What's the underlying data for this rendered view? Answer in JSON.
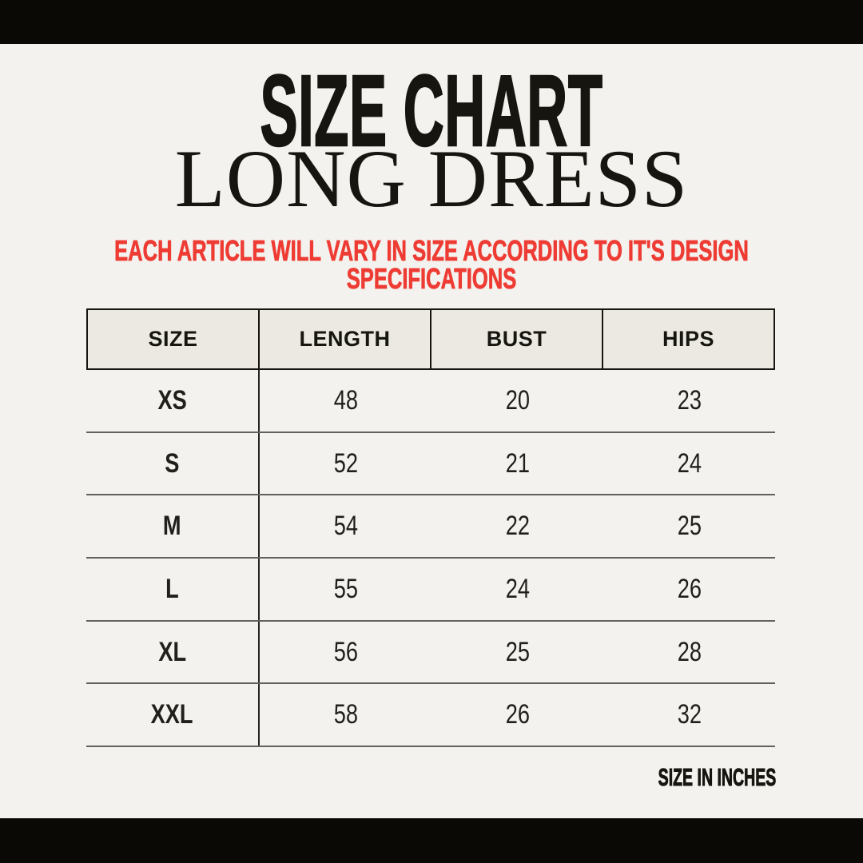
{
  "colors": {
    "page_bg": "#f3f2ee",
    "bar_black": "#0a0906",
    "ink": "#16150f",
    "accent_red": "#ee3b33",
    "header_bg": "#ebe9e2",
    "rule_gray": "#63615b",
    "divider": "#262520"
  },
  "header": {
    "title": "SIZE CHART",
    "subtitle": "LONG DRESS",
    "notice_line1": "EACH ARTICLE WILL VARY IN SIZE ACCORDING TO IT'S DESIGN",
    "notice_line2": "SPECIFICATIONS"
  },
  "size_table": {
    "columns": [
      "SIZE",
      "LENGTH",
      "BUST",
      "HIPS"
    ],
    "rows": [
      [
        "XS",
        "48",
        "20",
        "23"
      ],
      [
        "S",
        "52",
        "21",
        "24"
      ],
      [
        "M",
        "54",
        "22",
        "25"
      ],
      [
        "L",
        "55",
        "24",
        "26"
      ],
      [
        "XL",
        "56",
        "25",
        "28"
      ],
      [
        "XXL",
        "58",
        "26",
        "32"
      ]
    ]
  },
  "footer": {
    "unit_label": "SIZE IN INCHES"
  },
  "chart_data": {
    "type": "table",
    "title": "SIZE CHART",
    "subtitle": "LONG DRESS",
    "note": "EACH ARTICLE WILL VARY IN SIZE ACCORDING TO IT'S DESIGN SPECIFICATIONS",
    "units": "inches",
    "columns": [
      "SIZE",
      "LENGTH",
      "BUST",
      "HIPS"
    ],
    "rows": [
      {
        "size": "XS",
        "length": 48,
        "bust": 20,
        "hips": 23
      },
      {
        "size": "S",
        "length": 52,
        "bust": 21,
        "hips": 24
      },
      {
        "size": "M",
        "length": 54,
        "bust": 22,
        "hips": 25
      },
      {
        "size": "L",
        "length": 55,
        "bust": 24,
        "hips": 26
      },
      {
        "size": "XL",
        "length": 56,
        "bust": 25,
        "hips": 28
      },
      {
        "size": "XXL",
        "length": 58,
        "bust": 26,
        "hips": 32
      }
    ]
  }
}
